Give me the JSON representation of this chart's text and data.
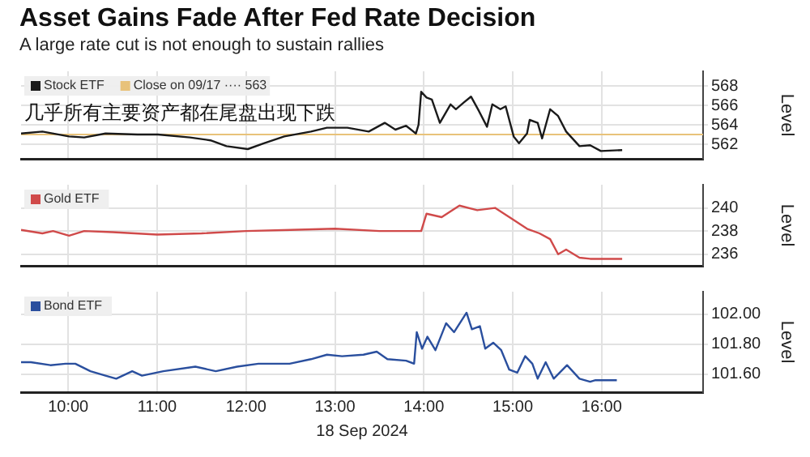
{
  "chart_data": [
    {
      "type": "line",
      "title": "Asset Gains Fade After Fed Rate Decision",
      "subtitle": "A large rate cut is not enough to sustain rallies",
      "ylabel": "Level",
      "legend": "top left",
      "grid": true,
      "tick_labels": "y",
      "xlim": [
        9.47,
        17.14
      ],
      "xticks": [
        {
          "value": 10,
          "label": null
        },
        {
          "value": 11,
          "label": null
        },
        {
          "value": 12,
          "label": null
        },
        {
          "value": 13,
          "label": null
        },
        {
          "value": 14,
          "label": null
        },
        {
          "value": 15,
          "label": null
        },
        {
          "value": 16,
          "label": null
        }
      ],
      "ylim": [
        560.5,
        569.5
      ],
      "yticks": [
        562,
        564,
        566,
        568
      ],
      "annotations": [
        "几乎所有主要资产都在尾盘出现下跌"
      ],
      "ref_lines": [
        {
          "axis": "y",
          "value": 563,
          "label": "Close on 09/17 ···· 563",
          "color": "#e8c27a"
        }
      ],
      "x": [
        9.47,
        9.71,
        10.01,
        10.18,
        10.42,
        10.78,
        11.01,
        11.37,
        11.6,
        11.78,
        12.02,
        12.2,
        12.43,
        12.73,
        12.91,
        13.14,
        13.38,
        13.56,
        13.68,
        13.8,
        13.91,
        13.94,
        13.97,
        14.03,
        14.09,
        14.18,
        14.3,
        14.36,
        14.45,
        14.53,
        14.62,
        14.71,
        14.77,
        14.86,
        14.92,
        15.01,
        15.07,
        15.16,
        15.19,
        15.28,
        15.33,
        15.42,
        15.51,
        15.6,
        15.75,
        15.87,
        15.99,
        16.23
      ],
      "series": [
        {
          "name": "Stock ETF",
          "color": "#1a1a1a",
          "values": [
            563.1,
            563.3,
            562.8,
            562.7,
            563.1,
            563.0,
            563.0,
            562.7,
            562.4,
            561.8,
            561.5,
            562.1,
            562.8,
            563.3,
            563.7,
            563.7,
            563.3,
            564.2,
            563.5,
            563.9,
            563.1,
            564.0,
            567.4,
            566.8,
            566.6,
            564.2,
            566.1,
            565.6,
            566.3,
            566.9,
            565.4,
            563.8,
            566.1,
            565.6,
            565.9,
            562.8,
            562.1,
            563.1,
            564.5,
            564.2,
            562.6,
            565.6,
            564.9,
            563.3,
            561.8,
            561.9,
            561.3,
            561.4
          ]
        }
      ]
    },
    {
      "type": "line",
      "ylabel": "Level",
      "legend": "top left",
      "grid": true,
      "tick_labels": "y",
      "xlim": [
        9.47,
        17.14
      ],
      "xticks": [
        {
          "value": 10,
          "label": null
        },
        {
          "value": 11,
          "label": null
        },
        {
          "value": 12,
          "label": null
        },
        {
          "value": 13,
          "label": null
        },
        {
          "value": 14,
          "label": null
        },
        {
          "value": 15,
          "label": null
        },
        {
          "value": 16,
          "label": null
        }
      ],
      "ylim": [
        235,
        242
      ],
      "yticks": [
        236,
        238,
        240
      ],
      "x": [
        9.47,
        9.71,
        9.83,
        10.01,
        10.18,
        10.5,
        11.0,
        11.5,
        12.0,
        12.5,
        13.0,
        13.5,
        13.97,
        14.03,
        14.2,
        14.4,
        14.6,
        14.8,
        15.0,
        15.16,
        15.3,
        15.42,
        15.51,
        15.6,
        15.75,
        15.87,
        16.23
      ],
      "series": [
        {
          "name": "Gold ETF",
          "color": "#d04a4a",
          "values": [
            238.1,
            237.8,
            238.0,
            237.6,
            238.0,
            237.9,
            237.7,
            237.8,
            238.0,
            238.1,
            238.2,
            238.0,
            238.0,
            239.5,
            239.2,
            240.2,
            239.8,
            240.0,
            239.0,
            238.2,
            237.8,
            237.3,
            236.0,
            236.4,
            235.7,
            235.6,
            235.6
          ]
        }
      ]
    },
    {
      "type": "line",
      "ylabel": "Level",
      "xlabel": "18 Sep 2024",
      "legend": "top left",
      "grid": true,
      "xlim": [
        9.47,
        17.14
      ],
      "xticks": [
        {
          "value": 10,
          "label": "10:00"
        },
        {
          "value": 11,
          "label": "11:00"
        },
        {
          "value": 12,
          "label": "12:00"
        },
        {
          "value": 13,
          "label": "13:00"
        },
        {
          "value": 14,
          "label": "14:00"
        },
        {
          "value": 15,
          "label": "15:00"
        },
        {
          "value": 16,
          "label": "16:00"
        }
      ],
      "ylim": [
        101.48,
        102.15
      ],
      "yticks": [
        {
          "value": 101.6,
          "label": "101.60"
        },
        {
          "value": 101.8,
          "label": "101.80"
        },
        {
          "value": 102,
          "label": "102.00"
        }
      ],
      "x": [
        9.47,
        9.58,
        9.8,
        9.97,
        10.08,
        10.25,
        10.42,
        10.54,
        10.72,
        10.83,
        11.07,
        11.43,
        11.66,
        11.9,
        12.14,
        12.49,
        12.73,
        12.91,
        13.08,
        13.32,
        13.47,
        13.59,
        13.8,
        13.89,
        13.92,
        13.98,
        14.04,
        14.13,
        14.25,
        14.34,
        14.48,
        14.54,
        14.63,
        14.69,
        14.78,
        14.87,
        14.96,
        15.05,
        15.14,
        15.22,
        15.28,
        15.37,
        15.46,
        15.61,
        15.75,
        15.87,
        15.93,
        16.17
      ],
      "series": [
        {
          "name": "Bond ETF",
          "color": "#2a4f9e",
          "values": [
            101.68,
            101.68,
            101.66,
            101.67,
            101.67,
            101.62,
            101.59,
            101.57,
            101.62,
            101.59,
            101.62,
            101.65,
            101.62,
            101.65,
            101.67,
            101.67,
            101.7,
            101.73,
            101.72,
            101.73,
            101.75,
            101.7,
            101.69,
            101.67,
            101.88,
            101.77,
            101.85,
            101.76,
            101.94,
            101.88,
            102.01,
            101.9,
            101.92,
            101.77,
            101.81,
            101.76,
            101.63,
            101.61,
            101.72,
            101.67,
            101.57,
            101.68,
            101.57,
            101.66,
            101.57,
            101.55,
            101.56,
            101.56
          ]
        }
      ]
    }
  ]
}
